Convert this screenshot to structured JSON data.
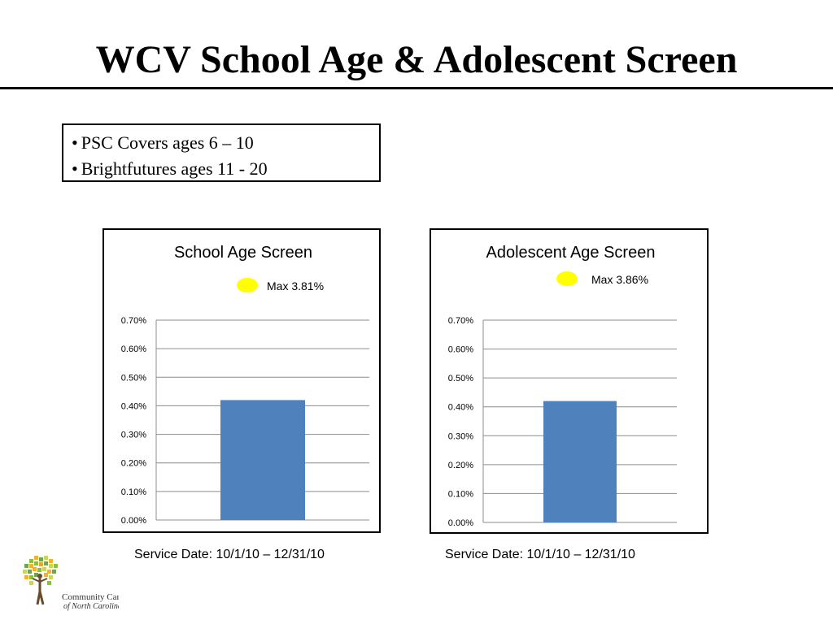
{
  "slide": {
    "title": "WCV School Age & Adolescent Screen",
    "bullets": [
      "PSC Covers ages 6 – 10",
      "Brightfutures ages 11 - 20"
    ],
    "captions": [
      "Service Date: 10/1/10 – 12/31/10",
      "Service Date: 10/1/10 – 12/31/10"
    ],
    "logo_text": [
      "Community Care",
      "of North Carolina"
    ]
  },
  "chart_data": [
    {
      "type": "bar",
      "title": "School Age Screen",
      "annotation": "Max 3.81%",
      "annotation_marker_color": "#FFFF00",
      "categories": [
        ""
      ],
      "values": [
        0.42
      ],
      "value_unit": "%",
      "ylim": [
        0,
        0.7
      ],
      "yticks": [
        "0.00%",
        "0.10%",
        "0.20%",
        "0.30%",
        "0.40%",
        "0.50%",
        "0.60%",
        "0.70%"
      ],
      "bar_color": "#4F81BD",
      "grid": true
    },
    {
      "type": "bar",
      "title": "Adolescent Age Screen",
      "annotation": "Max 3.86%",
      "annotation_marker_color": "#FFFF00",
      "categories": [
        ""
      ],
      "values": [
        0.42
      ],
      "value_unit": "%",
      "ylim": [
        0,
        0.7
      ],
      "yticks": [
        "0.00%",
        "0.10%",
        "0.20%",
        "0.30%",
        "0.40%",
        "0.50%",
        "0.60%",
        "0.70%"
      ],
      "bar_color": "#4F81BD",
      "grid": true
    }
  ]
}
